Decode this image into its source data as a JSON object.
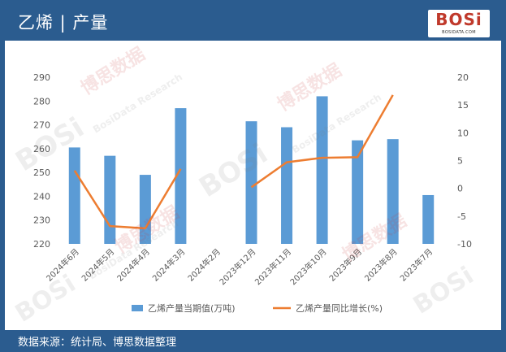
{
  "header": {
    "title": "乙烯 | 产量"
  },
  "logo": {
    "text": "BOSi",
    "sub": "BOSIDATA.COM"
  },
  "watermark": {
    "brand": "BOSi",
    "cn": "博思数据",
    "en": "BosiData Research",
    "site": "BOSIDATA.COM"
  },
  "footer": {
    "source": "数据来源：统计局、博思数据整理"
  },
  "colors": {
    "header_bg": "#2b5c8f",
    "bar": "#5b9bd5",
    "line": "#ed7d31",
    "axis_text": "#595959"
  },
  "chart_data": {
    "type": "bar",
    "categories": [
      "2024年6月",
      "2024年5月",
      "2024年4月",
      "2024年3月",
      "2024年2月",
      "2023年12月",
      "2023年11月",
      "2023年10月",
      "2023年9月",
      "2023年8月",
      "2023年7月"
    ],
    "series": [
      {
        "name": "乙烯产量当期值(万吨)",
        "type": "bar",
        "axis": "left",
        "values": [
          260.5,
          257,
          249,
          277,
          null,
          271.5,
          269,
          282,
          263.5,
          264,
          240.5
        ]
      },
      {
        "name": "乙烯产量同比增长(%)",
        "type": "line",
        "axis": "right",
        "values": [
          3.2,
          -6.8,
          -7.2,
          3.5,
          null,
          0.2,
          4.7,
          5.5,
          5.6,
          16.8,
          null
        ]
      }
    ],
    "ylim_left": [
      220,
      290
    ],
    "yticks_left": [
      "290",
      "280",
      "270",
      "260",
      "250",
      "240",
      "230",
      "220"
    ],
    "ylim_right": [
      -10,
      20
    ],
    "yticks_right": [
      "20",
      "15",
      "10",
      "5",
      "0",
      "-5",
      "-10"
    ],
    "grid": false,
    "legend": "bottom"
  }
}
